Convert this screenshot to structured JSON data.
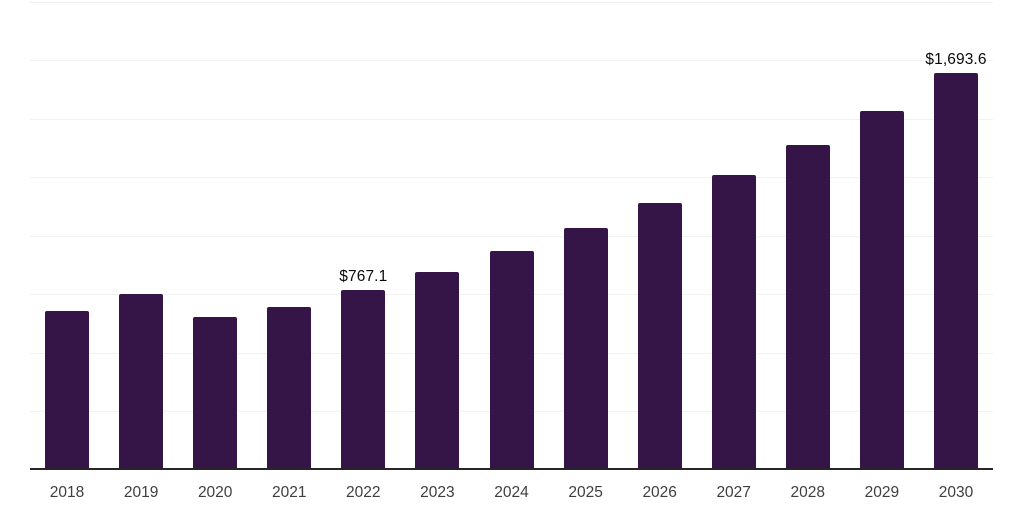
{
  "chart_data": {
    "type": "bar",
    "title": "",
    "xlabel": "",
    "ylabel": "",
    "categories": [
      "2018",
      "2019",
      "2020",
      "2021",
      "2022",
      "2023",
      "2024",
      "2025",
      "2026",
      "2027",
      "2028",
      "2029",
      "2030"
    ],
    "values": [
      680,
      752.5,
      652,
      696,
      767.1,
      846.9,
      935.1,
      1032.4,
      1139.8,
      1258.5,
      1389.4,
      1534,
      1693.6
    ],
    "value_labels": [
      null,
      null,
      null,
      null,
      "$767.1",
      null,
      null,
      null,
      null,
      null,
      null,
      null,
      "$1,693.6"
    ],
    "ylim": [
      0,
      2000
    ],
    "gridline_step": 250,
    "grid": true,
    "y_axis_tick_labels_visible": false,
    "legend_position": "none"
  },
  "colors": {
    "bar": "#351548",
    "axis_line": "#262626",
    "gridline": "#f1f1f1",
    "x_tick_label": "#3e3e3e",
    "value_label": "#0a0a0a",
    "background": "#ffffff"
  }
}
